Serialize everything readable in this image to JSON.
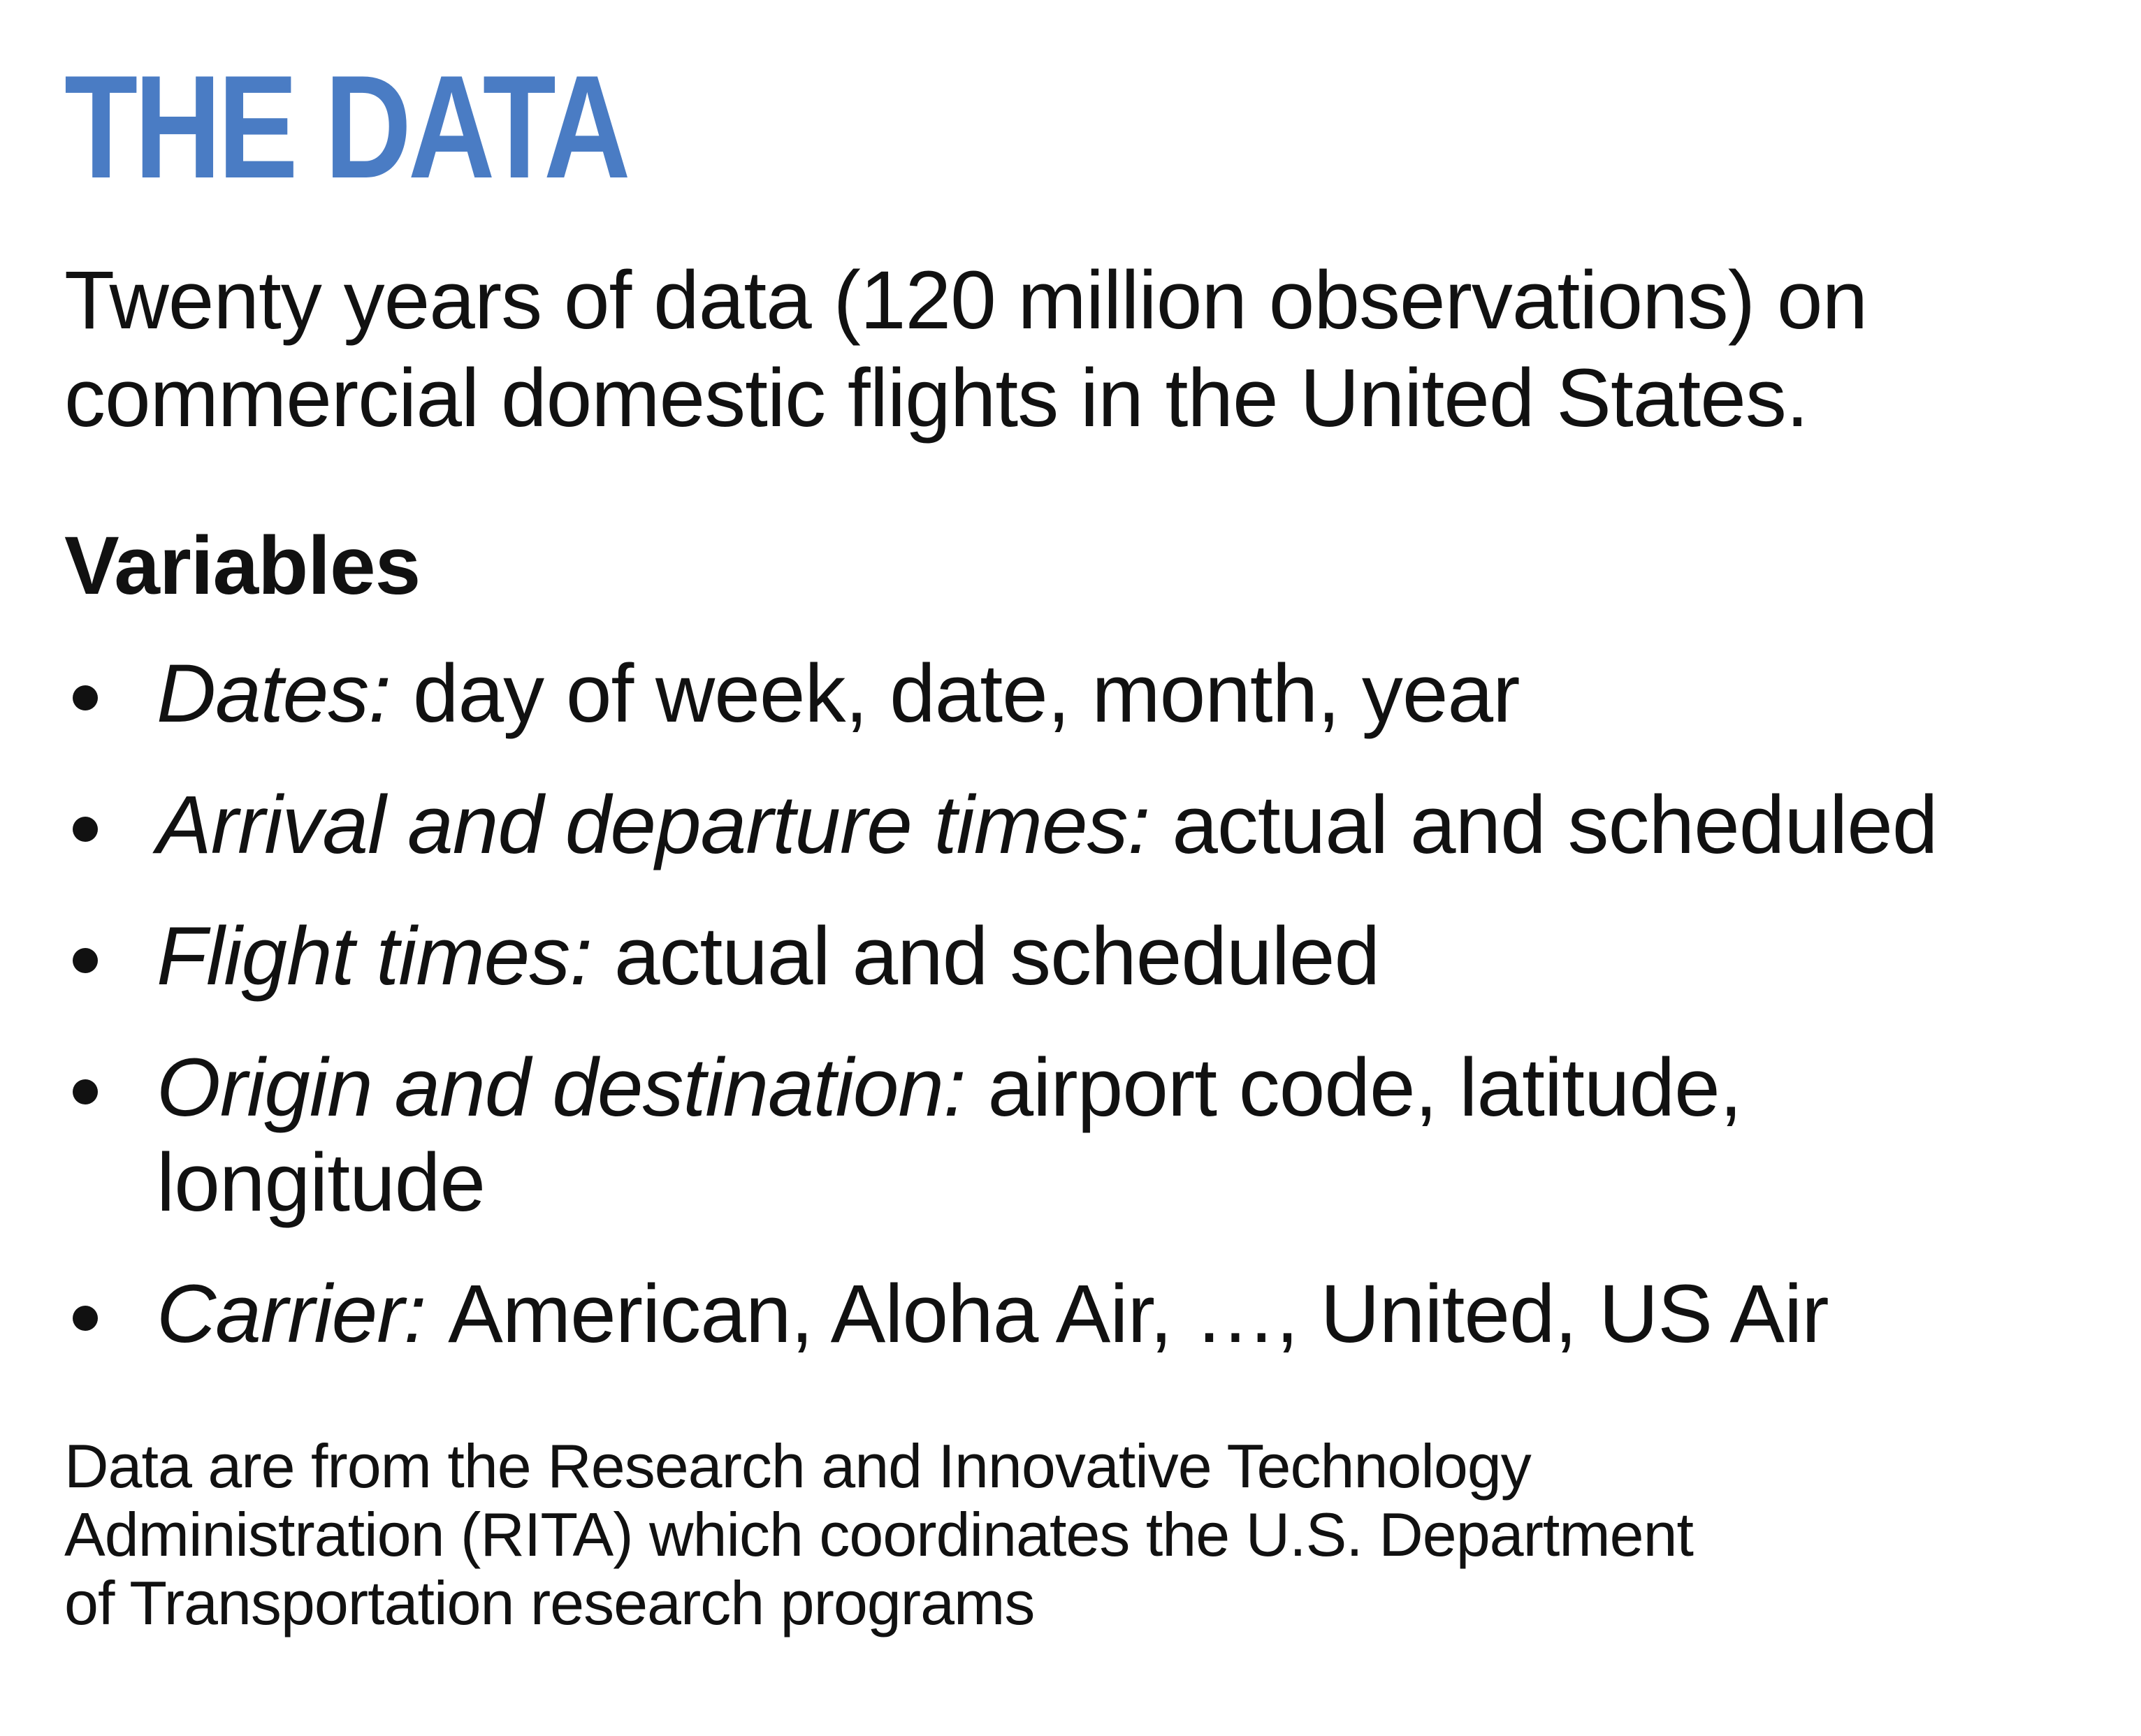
{
  "title": "THE DATA",
  "accent_color": "#4a7cc4",
  "intro": {
    "lines": [
      "Twenty years of data (120 million observations) on",
      "commercial domestic flights in the United States."
    ]
  },
  "variables": {
    "heading": "Variables",
    "items": [
      {
        "label": "Dates:",
        "value_lines": [
          "day of week, date, month, year"
        ]
      },
      {
        "label": "Arrival and departure times:",
        "value_lines": [
          "actual and scheduled"
        ]
      },
      {
        "label": "Flight times:",
        "value_lines": [
          "actual and scheduled"
        ]
      },
      {
        "label": "Origin and destination:",
        "value_lines": [
          "airport code, latitude,",
          "longitude"
        ]
      },
      {
        "label": "Carrier:",
        "value_lines": [
          "American, Aloha Air, …, United, US Air"
        ]
      }
    ]
  },
  "footnote": {
    "lines": [
      "Data are from the Research and Innovative Technology",
      "Administration (RITA) which coordinates the U.S. Department",
      "of Transportation research programs"
    ]
  }
}
